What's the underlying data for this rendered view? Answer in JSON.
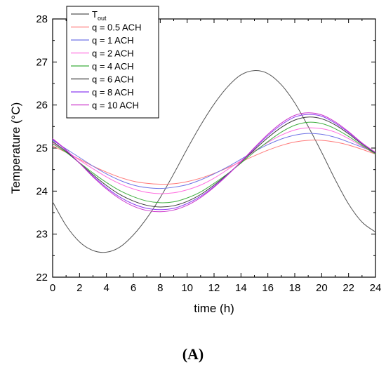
{
  "panel_label": "(A)",
  "chart_data": {
    "type": "line",
    "xlabel": "time (h)",
    "ylabel": "Temperature (°C)",
    "xlim": [
      0,
      24
    ],
    "ylim": [
      22,
      28
    ],
    "xticks": [
      0,
      2,
      4,
      6,
      8,
      10,
      12,
      14,
      16,
      18,
      20,
      22,
      24
    ],
    "yticks": [
      22,
      23,
      24,
      25,
      26,
      27,
      28
    ],
    "grid": false,
    "legend_position": "top-left",
    "x": [
      0,
      1,
      2,
      3,
      4,
      5,
      6,
      7,
      8,
      9,
      10,
      11,
      12,
      13,
      14,
      15,
      16,
      17,
      18,
      19,
      20,
      21,
      22,
      23,
      24
    ],
    "series": [
      {
        "name": "T",
        "name_subscript": "out",
        "color": "#555555",
        "values": [
          23.75,
          23.2,
          22.82,
          22.62,
          22.58,
          22.7,
          22.98,
          23.37,
          23.85,
          24.4,
          24.98,
          25.53,
          26.02,
          26.42,
          26.7,
          26.8,
          26.73,
          26.47,
          26.05,
          25.5,
          24.9,
          24.27,
          23.7,
          23.28,
          23.05
        ]
      },
      {
        "name": "q = 0.5 ACH",
        "color": "#ff7a7a",
        "values": [
          25.05,
          24.9,
          24.74,
          24.58,
          24.44,
          24.32,
          24.23,
          24.18,
          24.16,
          24.17,
          24.22,
          24.3,
          24.41,
          24.54,
          24.68,
          24.82,
          24.95,
          25.06,
          25.14,
          25.18,
          25.18,
          25.14,
          25.07,
          24.97,
          24.86
        ]
      },
      {
        "name": "q = 1 ACH",
        "color": "#6f73e6",
        "values": [
          25.18,
          24.98,
          24.78,
          24.58,
          24.4,
          24.25,
          24.14,
          24.08,
          24.06,
          24.09,
          24.15,
          24.26,
          24.4,
          24.56,
          24.74,
          24.92,
          25.08,
          25.21,
          25.3,
          25.34,
          25.32,
          25.25,
          25.14,
          25.02,
          24.9
        ]
      },
      {
        "name": "q = 2 ACH",
        "color": "#ff6fe0",
        "values": [
          25.12,
          24.93,
          24.72,
          24.52,
          24.33,
          24.17,
          24.05,
          23.97,
          23.94,
          23.96,
          24.03,
          24.14,
          24.3,
          24.5,
          24.71,
          24.93,
          25.13,
          25.3,
          25.42,
          25.47,
          25.45,
          25.37,
          25.22,
          25.04,
          24.86
        ]
      },
      {
        "name": "q = 4 ACH",
        "color": "#3fae3f",
        "values": [
          25.1,
          24.9,
          24.66,
          24.42,
          24.2,
          24.01,
          23.87,
          23.77,
          23.73,
          23.75,
          23.84,
          23.98,
          24.18,
          24.4,
          24.65,
          24.91,
          25.15,
          25.37,
          25.53,
          25.6,
          25.57,
          25.45,
          25.27,
          25.06,
          24.86
        ]
      },
      {
        "name": "q = 6 ACH",
        "color": "#3a3a3a",
        "values": [
          25.15,
          24.92,
          24.65,
          24.38,
          24.13,
          23.92,
          23.77,
          23.67,
          23.63,
          23.66,
          23.76,
          23.92,
          24.14,
          24.39,
          24.67,
          24.96,
          25.24,
          25.48,
          25.65,
          25.72,
          25.68,
          25.54,
          25.33,
          25.09,
          24.88
        ]
      },
      {
        "name": "q = 8 ACH",
        "color": "#8c3cf0",
        "values": [
          25.2,
          24.95,
          24.65,
          24.35,
          24.08,
          23.86,
          23.7,
          23.6,
          23.57,
          23.6,
          23.71,
          23.88,
          24.11,
          24.38,
          24.68,
          24.99,
          25.29,
          25.54,
          25.72,
          25.78,
          25.74,
          25.58,
          25.36,
          25.11,
          24.9
        ]
      },
      {
        "name": "q = 10 ACH",
        "color": "#cc33cc",
        "values": [
          25.22,
          24.96,
          24.65,
          24.33,
          24.05,
          23.82,
          23.65,
          23.55,
          23.52,
          23.56,
          23.67,
          23.85,
          24.09,
          24.37,
          24.68,
          25.01,
          25.32,
          25.58,
          25.76,
          25.82,
          25.77,
          25.61,
          25.38,
          25.12,
          24.9
        ]
      }
    ]
  }
}
